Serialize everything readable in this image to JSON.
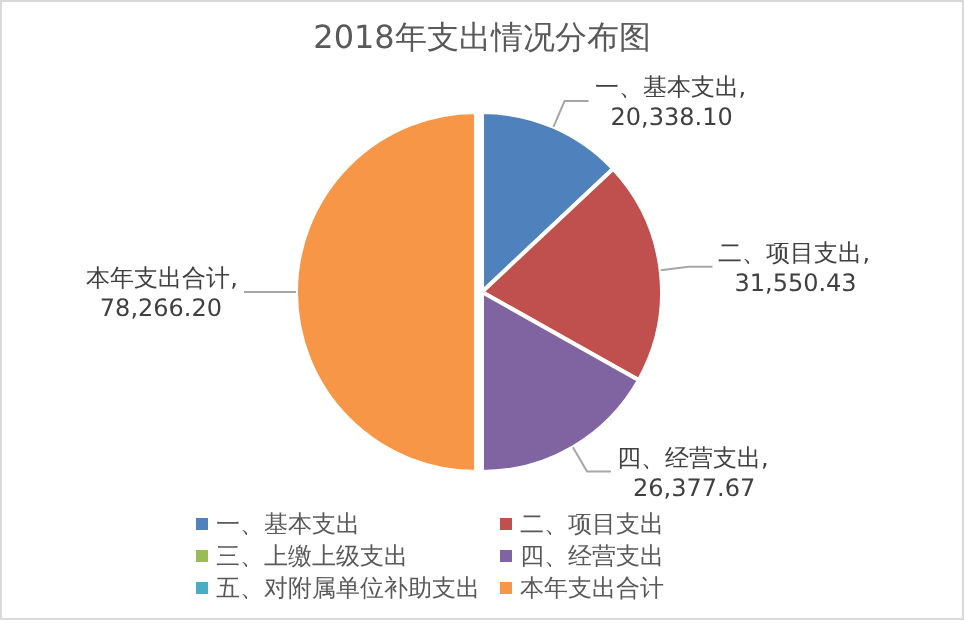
{
  "chart_data": {
    "type": "pie",
    "title": "2018年支出情况分布图",
    "categories": [
      "一、基本支出",
      "二、项目支出",
      "三、上缴上级支出",
      "四、经营支出",
      "五、对附属单位补助支出",
      "本年支出合计"
    ],
    "values": [
      20338.1,
      31550.43,
      0,
      26377.67,
      0,
      78266.2
    ],
    "colors": [
      "#4f81bd",
      "#c0504d",
      "#9bbb59",
      "#8064a2",
      "#4bacc6",
      "#f79646"
    ],
    "value_labels": [
      "一、基本支出,\n20,338.10",
      "二、项目支出,\n31,550.43",
      null,
      "四、经营支出,\n26,377.67",
      null,
      "本年支出合计,\n78,266.20"
    ],
    "legend": "bottom"
  }
}
